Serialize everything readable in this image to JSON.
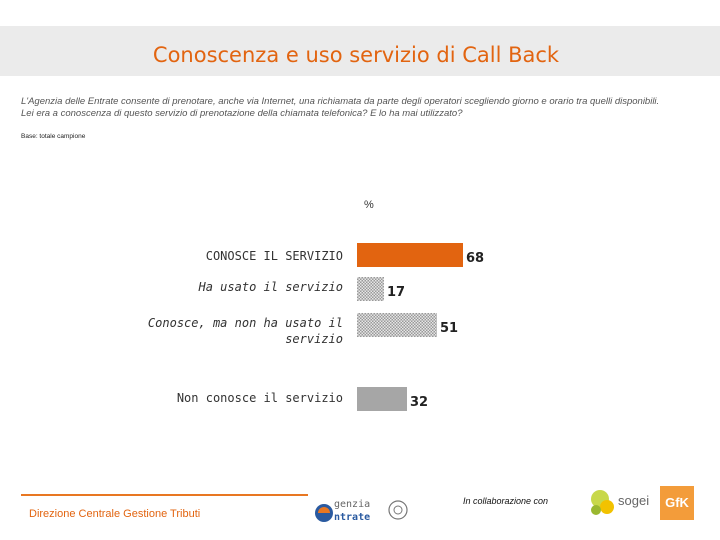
{
  "title": "Conoscenza e uso servizio di Call Back",
  "question": "L'Agenzia delle Entrate consente di prenotare, anche via Internet, una richiamata da parte degli operatori scegliendo giorno e orario tra quelli disponibili. Lei era a conoscenza di questo servizio di prenotazione della chiamata telefonica? E lo ha mai utilizzato?",
  "base_note": "Base: totale campione",
  "chart_data": {
    "type": "bar",
    "orientation": "horizontal",
    "unit": "%",
    "categories": [
      "CONOSCE IL SERVIZIO",
      "Ha usato il servizio",
      "Conosce, ma non ha usato il servizio",
      "Non conosce il servizio"
    ],
    "category_lines": [
      [
        "CONOSCE IL SERVIZIO"
      ],
      [
        "Ha usato il servizio"
      ],
      [
        "Conosce, ma non ha usato il",
        "servizio"
      ],
      [
        "Non conosce il servizio"
      ]
    ],
    "values": [
      68,
      17,
      51,
      32
    ],
    "labels": [
      "68",
      "17",
      "51",
      "32"
    ],
    "styles": [
      "solid-orange",
      "checker",
      "checker",
      "solid-grey"
    ],
    "colors": {
      "orange": "#e26410",
      "grey": "#a6a6a6"
    },
    "xlim": [
      0,
      68
    ],
    "grid": false
  },
  "footer": {
    "left_text": "Direzione Centrale Gestione Tributi",
    "agency_logo_text": [
      "genzia",
      "ntrate"
    ],
    "collab_text": "In collaborazione con",
    "sogei_text": "sogei",
    "gfk_text": "GfK"
  }
}
